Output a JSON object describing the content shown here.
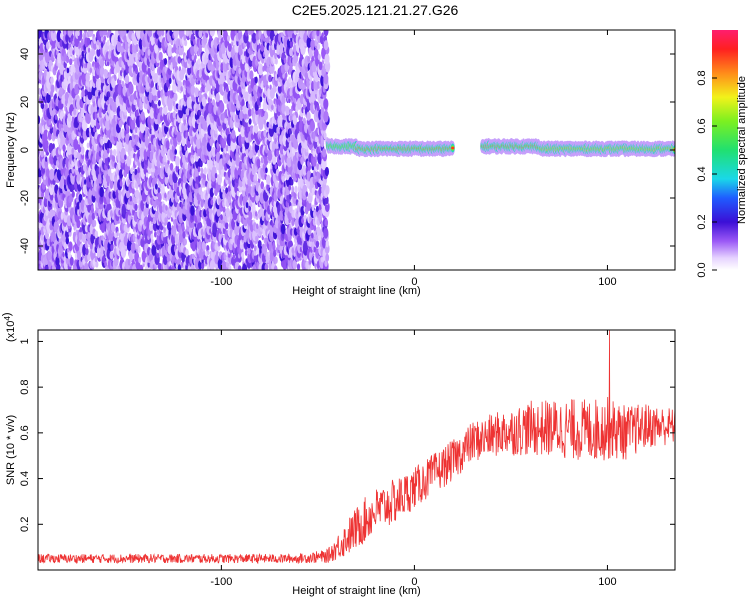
{
  "title": "C2E5.2025.121.21.27.G26",
  "chart_data": [
    {
      "type": "heatmap",
      "xlabel": "Height of straight line (km)",
      "ylabel": "Frequency (Hz)",
      "xlim": [
        -195,
        135
      ],
      "ylim": [
        -50,
        50
      ],
      "xticks": [
        -100,
        0,
        100
      ],
      "yticks": [
        -40,
        -20,
        0,
        20,
        40
      ],
      "colorbar": {
        "label": "Normalized spectral amplitude",
        "range": [
          0,
          1
        ],
        "ticks": [
          0.0,
          0.2,
          0.4,
          0.6,
          0.8
        ]
      },
      "regions": [
        {
          "x_range": [
            -195,
            -45
          ],
          "freq_range": [
            -50,
            50
          ],
          "amplitude": 0.05,
          "note": "broadband noise"
        },
        {
          "x_range": [
            -45,
            -30
          ],
          "freq": 1.5,
          "amplitude": 0.5,
          "note": "onset"
        },
        {
          "x_range": [
            -30,
            20
          ],
          "freq": 0.5,
          "amplitude": 0.9
        },
        {
          "x_range": [
            35,
            65
          ],
          "freq": 1.5,
          "amplitude": 0.95
        },
        {
          "x_range": [
            65,
            135
          ],
          "freq": 0.5,
          "amplitude": 0.8
        }
      ]
    },
    {
      "type": "line",
      "xlabel": "Height of straight line (km)",
      "ylabel": "SNR (10 * v/v)",
      "y_multiplier": "(x10",
      "y_multiplier_exp": "4",
      "xlim": [
        -195,
        135
      ],
      "ylim": [
        0,
        1.05
      ],
      "xticks": [
        -100,
        0,
        100
      ],
      "yticks": [
        0.2,
        0.4,
        0.6,
        0.8,
        1.0
      ],
      "series": [
        {
          "color": "#ee3333",
          "x": [
            -195,
            -150,
            -100,
            -60,
            -45,
            -35,
            -28,
            -20,
            -10,
            0,
            10,
            20,
            30,
            45,
            60,
            75,
            90,
            100,
            110,
            120,
            135
          ],
          "y": [
            0.05,
            0.05,
            0.05,
            0.05,
            0.06,
            0.14,
            0.2,
            0.26,
            0.3,
            0.36,
            0.42,
            0.48,
            0.56,
            0.6,
            0.62,
            0.62,
            0.61,
            0.62,
            0.6,
            0.63,
            0.63
          ],
          "noise": [
            0.02,
            0.02,
            0.02,
            0.02,
            0.03,
            0.08,
            0.1,
            0.1,
            0.1,
            0.09,
            0.09,
            0.09,
            0.09,
            0.1,
            0.12,
            0.13,
            0.14,
            0.14,
            0.12,
            0.1,
            0.08
          ],
          "peak": {
            "x": 101,
            "y": 1.05
          }
        }
      ]
    }
  ]
}
